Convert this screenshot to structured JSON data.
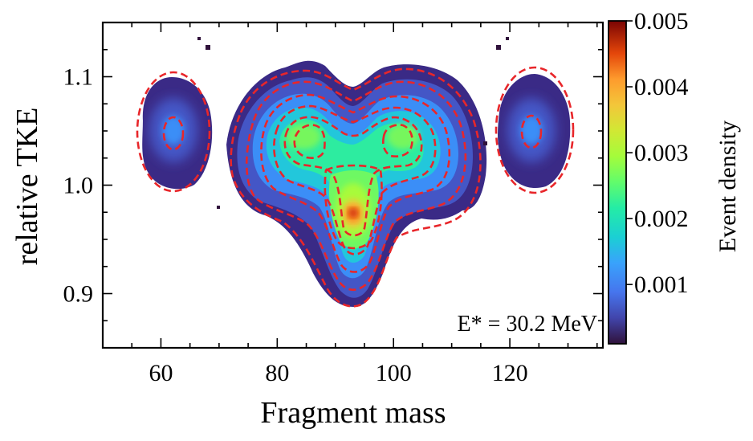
{
  "chart_data": {
    "type": "heatmap",
    "title": "",
    "xlabel": "Fragment mass",
    "ylabel": "relative TKE",
    "xlim": [
      50,
      136
    ],
    "ylim": [
      0.85,
      1.15
    ],
    "x_ticks": [
      60,
      80,
      100,
      120
    ],
    "x_tick_labels": [
      "60",
      "80",
      "100",
      "120"
    ],
    "y_ticks": [
      0.9,
      1.0,
      1.1
    ],
    "y_tick_labels": [
      "0.9",
      "1.0",
      "1.1"
    ],
    "annotation": "E* = 30.2 MeV",
    "colorbar": {
      "label": "Event density",
      "range": [
        0.0001,
        0.005
      ],
      "ticks": [
        0.001,
        0.002,
        0.003,
        0.004,
        0.005
      ],
      "tick_labels": [
        "0.001",
        "0.002",
        "0.003",
        "0.004",
        "0.005"
      ],
      "colormap": "turbo"
    },
    "density_peaks": [
      {
        "name": "central symmetric peak",
        "mass": 93.5,
        "tke": 0.972,
        "density": 0.0048
      },
      {
        "name": "left shoulder",
        "mass": 84.5,
        "tke": 1.04,
        "density": 0.0024
      },
      {
        "name": "right shoulder",
        "mass": 103,
        "tke": 1.04,
        "density": 0.0024
      },
      {
        "name": "left side lobe",
        "mass": 62.5,
        "tke": 1.05,
        "density": 0.0011
      },
      {
        "name": "right side lobe",
        "mass": 124.5,
        "tke": 1.05,
        "density": 0.0011
      }
    ],
    "contour_color": "#e8262a",
    "contour_style": "dashed"
  }
}
